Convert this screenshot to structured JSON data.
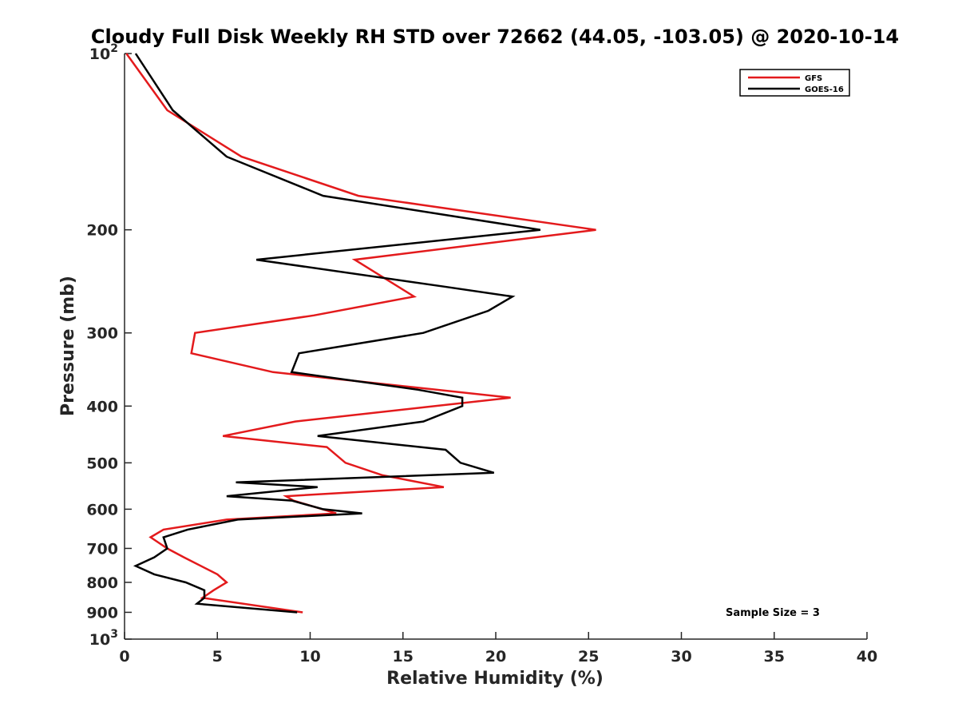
{
  "chart_data": {
    "type": "line",
    "title": "Cloudy Full Disk Weekly RH STD over 72662 (44.05, -103.05) @ 2020-10-14",
    "xlabel": "Relative Humidity (%)",
    "ylabel": "Pressure (mb)",
    "xlim": [
      0,
      40
    ],
    "ylim": [
      100,
      1000
    ],
    "y_scale": "log",
    "y_reversed": true,
    "grid": false,
    "legend_placement": "top-right",
    "x_ticks": [
      0,
      5,
      10,
      15,
      20,
      25,
      30,
      35,
      40
    ],
    "y_ticks": [
      {
        "value": 100,
        "label_base": "10",
        "label_exp": "2"
      },
      {
        "value": 200,
        "label": "200"
      },
      {
        "value": 300,
        "label": "300"
      },
      {
        "value": 400,
        "label": "400"
      },
      {
        "value": 500,
        "label": "500"
      },
      {
        "value": 600,
        "label": "600"
      },
      {
        "value": 700,
        "label": "700"
      },
      {
        "value": 800,
        "label": "800"
      },
      {
        "value": 900,
        "label": "900"
      },
      {
        "value": 1000,
        "label_base": "10",
        "label_exp": "3"
      }
    ],
    "annotation": "Sample Size = 3",
    "series": [
      {
        "name": "GFS",
        "color": "#e31a1c",
        "points": [
          [
            0.1,
            100
          ],
          [
            2.3,
            125
          ],
          [
            6.3,
            150
          ],
          [
            12.6,
            175
          ],
          [
            25.4,
            200
          ],
          [
            12.4,
            225
          ],
          [
            15.6,
            260
          ],
          [
            10.2,
            280
          ],
          [
            3.8,
            300
          ],
          [
            3.6,
            325
          ],
          [
            8.0,
            350
          ],
          [
            20.8,
            387
          ],
          [
            9.2,
            425
          ],
          [
            5.3,
            450
          ],
          [
            10.9,
            470
          ],
          [
            11.9,
            500
          ],
          [
            13.9,
            525
          ],
          [
            17.2,
            550
          ],
          [
            8.7,
            570
          ],
          [
            9.1,
            580
          ],
          [
            11.4,
            610
          ],
          [
            5.5,
            625
          ],
          [
            2.1,
            650
          ],
          [
            1.4,
            670
          ],
          [
            2.3,
            700
          ],
          [
            3.2,
            725
          ],
          [
            5.0,
            775
          ],
          [
            5.5,
            800
          ],
          [
            4.8,
            825
          ],
          [
            4.2,
            850
          ],
          [
            9.6,
            900
          ]
        ]
      },
      {
        "name": "GOES-16",
        "color": "#000000",
        "points": [
          [
            0.6,
            100
          ],
          [
            2.6,
            125
          ],
          [
            5.5,
            150
          ],
          [
            10.7,
            175
          ],
          [
            22.4,
            200
          ],
          [
            7.1,
            225
          ],
          [
            17.2,
            250
          ],
          [
            20.9,
            260
          ],
          [
            19.6,
            275
          ],
          [
            16.1,
            300
          ],
          [
            9.4,
            325
          ],
          [
            9.0,
            350
          ],
          [
            15.8,
            375
          ],
          [
            18.2,
            387
          ],
          [
            18.2,
            400
          ],
          [
            16.1,
            425
          ],
          [
            10.4,
            450
          ],
          [
            17.3,
            475
          ],
          [
            18.1,
            500
          ],
          [
            19.9,
            520
          ],
          [
            6.0,
            540
          ],
          [
            10.4,
            550
          ],
          [
            5.5,
            570
          ],
          [
            9.0,
            580
          ],
          [
            10.7,
            600
          ],
          [
            12.8,
            610
          ],
          [
            6.1,
            625
          ],
          [
            3.4,
            650
          ],
          [
            2.1,
            670
          ],
          [
            2.3,
            700
          ],
          [
            1.6,
            725
          ],
          [
            0.6,
            750
          ],
          [
            1.6,
            775
          ],
          [
            3.3,
            800
          ],
          [
            4.3,
            825
          ],
          [
            4.3,
            850
          ],
          [
            3.9,
            870
          ],
          [
            9.3,
            900
          ]
        ]
      }
    ]
  }
}
